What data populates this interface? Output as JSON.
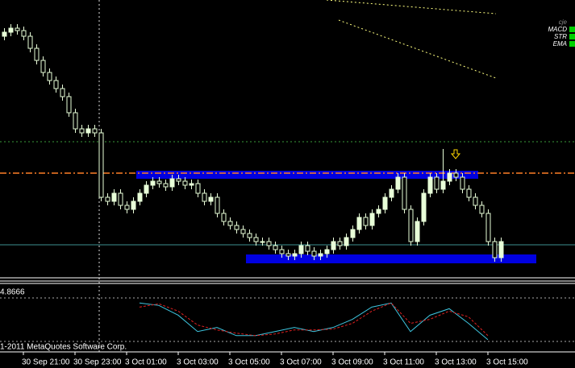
{
  "chart_data": {
    "type": "candlestick",
    "open": [
      300,
      305,
      310,
      307,
      300,
      285,
      270,
      255,
      245,
      235,
      225,
      205,
      185,
      180,
      185,
      180,
      100,
      95,
      105,
      90,
      85,
      95,
      105,
      115,
      120,
      117,
      113,
      123,
      120,
      115,
      117,
      105,
      95,
      100,
      80,
      70,
      65,
      60,
      55,
      50,
      45,
      45,
      40,
      35,
      30,
      27,
      30,
      40,
      33,
      27,
      30,
      35,
      45,
      40,
      50,
      60,
      75,
      65,
      80,
      85,
      100,
      110,
      125,
      85,
      45,
      70,
      105,
      125,
      110,
      120,
      130,
      125,
      110,
      100,
      90,
      80,
      45,
      25
    ],
    "high": [
      310,
      315,
      315,
      312,
      305,
      290,
      275,
      260,
      250,
      240,
      230,
      210,
      190,
      190,
      190,
      185,
      105,
      110,
      110,
      95,
      100,
      110,
      120,
      125,
      125,
      122,
      128,
      128,
      125,
      122,
      122,
      110,
      105,
      105,
      85,
      75,
      70,
      65,
      60,
      55,
      50,
      50,
      45,
      40,
      35,
      35,
      45,
      45,
      38,
      35,
      40,
      50,
      50,
      55,
      65,
      80,
      80,
      85,
      90,
      105,
      115,
      130,
      130,
      90,
      75,
      110,
      130,
      130,
      160,
      135,
      135,
      130,
      115,
      105,
      95,
      85,
      50,
      50
    ],
    "low": [
      295,
      300,
      302,
      295,
      280,
      265,
      250,
      240,
      230,
      220,
      200,
      180,
      175,
      175,
      175,
      95,
      90,
      90,
      85,
      80,
      80,
      90,
      100,
      110,
      112,
      108,
      108,
      115,
      110,
      110,
      100,
      90,
      90,
      75,
      65,
      60,
      55,
      50,
      45,
      40,
      40,
      35,
      30,
      25,
      22,
      22,
      25,
      28,
      22,
      22,
      25,
      30,
      35,
      35,
      45,
      55,
      60,
      60,
      75,
      80,
      95,
      105,
      80,
      40,
      40,
      65,
      100,
      105,
      105,
      115,
      120,
      105,
      95,
      85,
      75,
      40,
      20,
      20
    ],
    "close": [
      305,
      310,
      307,
      300,
      285,
      270,
      255,
      245,
      235,
      225,
      205,
      185,
      180,
      185,
      180,
      100,
      95,
      105,
      90,
      85,
      95,
      105,
      115,
      120,
      117,
      113,
      123,
      120,
      115,
      117,
      105,
      95,
      100,
      80,
      70,
      65,
      60,
      55,
      50,
      45,
      45,
      40,
      35,
      30,
      27,
      30,
      40,
      33,
      27,
      30,
      35,
      45,
      40,
      50,
      60,
      75,
      65,
      80,
      85,
      100,
      110,
      125,
      85,
      45,
      70,
      105,
      125,
      110,
      120,
      130,
      125,
      110,
      100,
      90,
      80,
      45,
      25,
      45
    ],
    "ylim": [
      0,
      345
    ],
    "xticks": [
      {
        "value": 3,
        "label": "30 Sep 21:00"
      },
      {
        "value": 11,
        "label": "30 Sep 23:00"
      },
      {
        "value": 19,
        "label": "3 Oct 01:00"
      },
      {
        "value": 27,
        "label": "3 Oct 03:00"
      },
      {
        "value": 35,
        "label": "3 Oct 05:00"
      },
      {
        "value": 43,
        "label": "3 Oct 07:00"
      },
      {
        "value": 51,
        "label": "3 Oct 09:00"
      },
      {
        "value": 59,
        "label": "3 Oct 11:00"
      },
      {
        "value": 67,
        "label": "3 Oct 13:00"
      },
      {
        "value": 75,
        "label": "3 Oct 15:00"
      }
    ],
    "up_color": "#e8ffd8",
    "down_color": "#000000",
    "hlines": [
      {
        "value": 169,
        "color": "#3a9a3a"
      },
      {
        "value": 130,
        "color": "#ff7f27"
      },
      {
        "value": 41,
        "color": "#3b8f8f"
      }
    ],
    "zones": [
      {
        "from": 21,
        "to": 73,
        "low": 123,
        "high": 133,
        "color": "#0000e0"
      },
      {
        "from": 38,
        "to": 82,
        "low": 18,
        "high": 29,
        "color": "#0000e0"
      }
    ],
    "arrows": [
      {
        "index": 70,
        "value": 153,
        "color": "#ffd800"
      }
    ],
    "indicators": [
      "cje",
      "MACD",
      "STR",
      "EMA"
    ],
    "indicator_window": {
      "label": "4.8666",
      "ylim": [
        0,
        75
      ],
      "x": [
        0,
        3,
        6,
        9,
        12,
        15,
        18,
        21,
        24,
        27,
        30,
        33,
        36,
        39,
        42,
        45,
        48,
        51,
        54,
        57,
        60,
        63,
        66,
        69,
        72,
        75
      ],
      "series": [
        {
          "color": "#3ec6e0",
          "values": [
            null,
            null,
            null,
            null,
            null,
            null,
            null,
            55,
            52,
            40,
            20,
            25,
            15,
            15,
            20,
            25,
            20,
            25,
            35,
            50,
            55,
            20,
            40,
            48,
            30,
            10
          ]
        },
        {
          "color": "#e02020",
          "values": [
            null,
            null,
            null,
            null,
            null,
            null,
            null,
            50,
            54,
            45,
            28,
            22,
            18,
            15,
            17,
            22,
            22,
            23,
            30,
            45,
            55,
            30,
            35,
            45,
            38,
            15
          ]
        }
      ]
    },
    "copyright": "1-2011 MetaQuotes Software Corp."
  }
}
